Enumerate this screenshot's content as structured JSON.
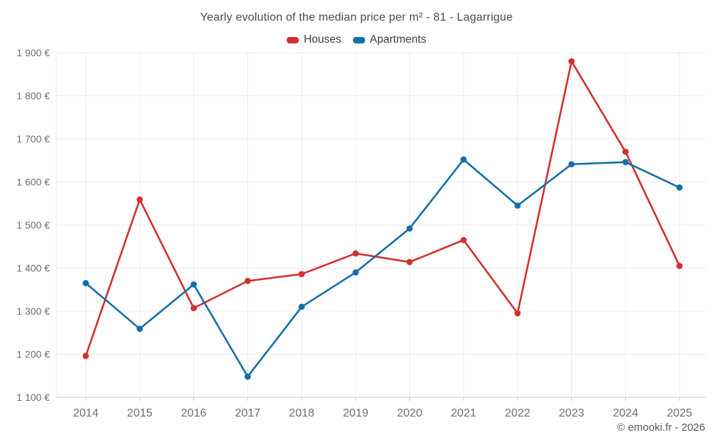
{
  "footer": {
    "text": "© emooki.fr - 2026"
  },
  "colors": {
    "houses": "#d32f2f",
    "apartments": "#156fa8",
    "grid": "#ececec",
    "axis": "#cccccc",
    "tick_label": "#6d6d6d",
    "title_text": "#474a4f",
    "footer_text": "#56585b"
  },
  "chart_data": {
    "type": "line",
    "title": "Yearly evolution of the median price per m² - 81 - Lagarrigue",
    "xlabel": "",
    "ylabel": "",
    "x": [
      "2014",
      "2015",
      "2016",
      "2017",
      "2018",
      "2019",
      "2020",
      "2021",
      "2022",
      "2023",
      "2024",
      "2025"
    ],
    "series": [
      {
        "name": "Houses",
        "color": "#d32f2f",
        "values": [
          1196,
          1559,
          1307,
          1370,
          1386,
          1434,
          1414,
          1465,
          1295,
          1880,
          1670,
          1405
        ]
      },
      {
        "name": "Apartments",
        "color": "#156fa8",
        "values": [
          1365,
          1259,
          1362,
          1148,
          1310,
          1390,
          1492,
          1652,
          1545,
          1641,
          1646,
          1587
        ]
      }
    ],
    "ylim": [
      1100,
      1900
    ],
    "ytick_step": 100,
    "ytick_labels": [
      "1 100 €",
      "1 200 €",
      "1 300 €",
      "1 400 €",
      "1 500 €",
      "1 600 €",
      "1 700 €",
      "1 800 €",
      "1 900 €"
    ],
    "grid": true,
    "legend_position": "top",
    "currency": "€"
  }
}
